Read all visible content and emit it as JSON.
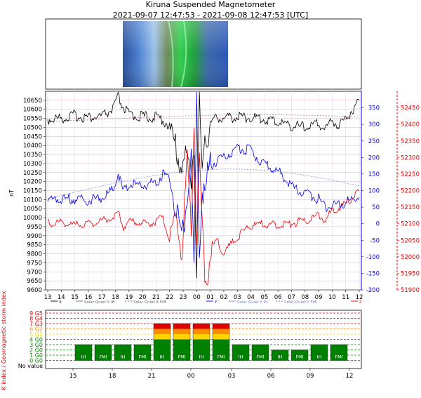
{
  "title": "Kiruna Suspended Magnetometer",
  "subtitle": "2021-09-07 12:47:53 - 2021-09-08 12:47:53 [UTC]",
  "colors": {
    "x_component": "#000000",
    "y_component": "#0000ee",
    "z_component": "#ee0000",
    "kp_green": "#008000",
    "kp_yellow": "#ffd200",
    "kp_orange": "#ff8c00",
    "kp_red": "#dd0000",
    "quiet_line": "#c8a0c8"
  },
  "chart_data": [
    {
      "type": "line",
      "title": "Kiruna Suspended Magnetometer",
      "ylabel": "nT",
      "x_ticks": [
        "13",
        "14",
        "15",
        "16",
        "17",
        "18",
        "19",
        "20",
        "21",
        "22",
        "23",
        "00",
        "01",
        "02",
        "03",
        "04",
        "05",
        "06",
        "07",
        "08",
        "09",
        "10",
        "11",
        "12"
      ],
      "ylim_left": [
        9600,
        10700
      ],
      "y_ticks_left": [
        9600,
        9650,
        9700,
        9750,
        9800,
        9850,
        9900,
        9950,
        10000,
        10050,
        10100,
        10150,
        10200,
        10250,
        10300,
        10350,
        10400,
        10450,
        10500,
        10550,
        10600,
        10650
      ],
      "ylim_right_blue": [
        -200,
        400
      ],
      "y_ticks_right_blue": [
        -200,
        -150,
        -100,
        -50,
        0,
        50,
        100,
        150,
        200,
        250,
        300,
        350
      ],
      "ylim_right_red": [
        51900,
        52500
      ],
      "y_ticks_right_red": [
        51900,
        51950,
        52000,
        52050,
        52100,
        52150,
        52200,
        52250,
        52300,
        52350,
        52400,
        52450
      ],
      "grid": true,
      "legend": "bottom",
      "legend_entries": [
        "X",
        "Solar Quiet X IH",
        "Solar Quiet X FMI",
        "Y",
        "Solar Quiet Y IH",
        "Solar Quiet Y FMI",
        "Z"
      ],
      "series": [
        {
          "name": "X",
          "axis": "left",
          "x": [
            0,
            1,
            2,
            3,
            4,
            4.8,
            5.2,
            5.6,
            6,
            7,
            8,
            8.5,
            9,
            9.5,
            9.9,
            10.3,
            10.6,
            10.8,
            11.0,
            11.2,
            11.4,
            11.6,
            11.8,
            12.0,
            12.3,
            12.7,
            13,
            14,
            15,
            16,
            17,
            18,
            19,
            20,
            20.5,
            21,
            21.5,
            22,
            22.5,
            23
          ],
          "values": [
            10545,
            10550,
            10565,
            10555,
            10560,
            10600,
            10665,
            10610,
            10570,
            10560,
            10555,
            10545,
            10500,
            10370,
            10280,
            10350,
            10230,
            10400,
            9660,
            10680,
            10200,
            10490,
            10430,
            10510,
            10545,
            10560,
            10550,
            10560,
            10555,
            10545,
            10530,
            10510,
            10500,
            10520,
            10495,
            10540,
            10510,
            10550,
            10600,
            10650
          ]
        },
        {
          "name": "Y",
          "axis": "right_blue",
          "x": [
            0,
            1,
            2,
            3,
            4,
            4.8,
            5.2,
            5.6,
            6,
            7,
            8,
            8.5,
            9,
            9.5,
            9.9,
            10.3,
            10.6,
            10.8,
            11.0,
            11.2,
            11.4,
            11.6,
            11.8,
            12.0,
            12.5,
            13,
            14,
            15,
            16,
            17,
            18,
            19,
            20,
            20.5,
            21,
            22,
            23
          ],
          "values": [
            70,
            75,
            75,
            70,
            80,
            100,
            150,
            95,
            120,
            115,
            125,
            150,
            140,
            30,
            -50,
            80,
            200,
            -150,
            380,
            -100,
            100,
            80,
            150,
            180,
            190,
            200,
            230,
            220,
            180,
            160,
            110,
            90,
            75,
            50,
            55,
            65,
            80
          ]
        },
        {
          "name": "Z",
          "axis": "right_red",
          "x": [
            0,
            1,
            2,
            3,
            4,
            4.8,
            5.2,
            5.6,
            6,
            7,
            8,
            8.5,
            9,
            9.5,
            9.9,
            10.3,
            10.6,
            10.8,
            11.0,
            11.2,
            11.4,
            11.6,
            11.8,
            12.0,
            12.5,
            13,
            14,
            15,
            16,
            17,
            18,
            19,
            20,
            20.5,
            21,
            22,
            23
          ],
          "values": [
            52100,
            52105,
            52095,
            52100,
            52110,
            52120,
            52135,
            52090,
            52110,
            52100,
            52105,
            52120,
            52050,
            52120,
            52000,
            52300,
            52080,
            52400,
            52050,
            52300,
            52100,
            51950,
            51920,
            52020,
            52050,
            52010,
            52060,
            52095,
            52100,
            52095,
            52100,
            52110,
            52125,
            52110,
            52140,
            52160,
            52200
          ]
        }
      ]
    },
    {
      "type": "bar",
      "ylabel": "K index / Geomagnetic storm index",
      "y_tick_labels": [
        "No value",
        "0 G0",
        "1 G0",
        "2 G0",
        "3 G0",
        "4 G0",
        "5 G1",
        "6 G2",
        "7 G3",
        "8 G4",
        "9 G5"
      ],
      "x_ticks": [
        "15",
        "18",
        "21",
        "00",
        "03",
        "06",
        "09",
        "12"
      ],
      "bars": [
        {
          "label": "IH",
          "value": 3
        },
        {
          "label": "FMI",
          "value": 3
        },
        {
          "label": "IH",
          "value": 3
        },
        {
          "label": "FMI",
          "value": 3
        },
        {
          "label": "IH",
          "value": 7
        },
        {
          "label": "FMI",
          "value": 7
        },
        {
          "label": "IH",
          "value": 7
        },
        {
          "label": "FMI",
          "value": 7
        },
        {
          "label": "IH",
          "value": 3
        },
        {
          "label": "FMI",
          "value": 3
        },
        {
          "label": "IH",
          "value": 2
        },
        {
          "label": "FMI",
          "value": 2
        },
        {
          "label": "IH",
          "value": 3
        },
        {
          "label": "FMI",
          "value": 3
        }
      ]
    }
  ]
}
